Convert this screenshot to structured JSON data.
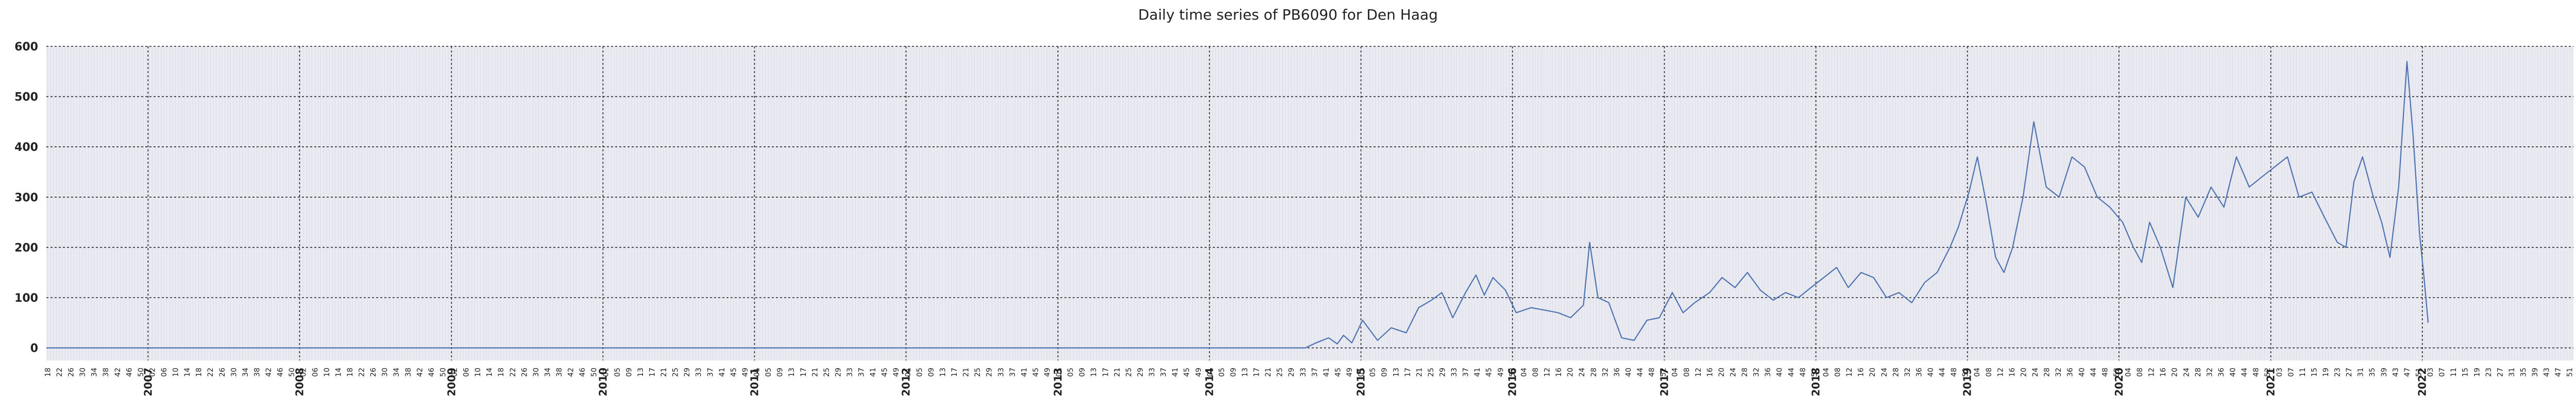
{
  "chart_data": {
    "type": "line",
    "title": "Daily time series of PB6090 for Den Haag",
    "xlabel": "",
    "ylabel": "",
    "x_range": [
      "2006-05-01",
      "2022-12-31"
    ],
    "ylim": [
      -25,
      600
    ],
    "y_ticks": [
      0,
      100,
      200,
      300,
      400,
      500,
      600
    ],
    "grid": true,
    "year_ticks": [
      "2007",
      "2008",
      "2009",
      "2010",
      "2011",
      "2012",
      "2013",
      "2014",
      "2015",
      "2016",
      "2017",
      "2018",
      "2019",
      "2020",
      "2021",
      "2022"
    ],
    "series": [
      {
        "color": "#4c72b0",
        "x": [
          "2006-05-01",
          "2014-08-20",
          "2014-09-15",
          "2014-10-15",
          "2014-11-05",
          "2014-11-20",
          "2014-12-10",
          "2015-01-05",
          "2015-02-10",
          "2015-03-15",
          "2015-04-20",
          "2015-05-20",
          "2015-06-20",
          "2015-07-15",
          "2015-08-10",
          "2015-09-10",
          "2015-10-05",
          "2015-10-25",
          "2015-11-15",
          "2015-12-15",
          "2016-01-10",
          "2016-02-15",
          "2016-03-20",
          "2016-04-20",
          "2016-05-20",
          "2016-06-20",
          "2016-07-05",
          "2016-07-25",
          "2016-08-20",
          "2016-09-20",
          "2016-10-20",
          "2016-11-20",
          "2016-12-20",
          "2017-01-20",
          "2017-02-15",
          "2017-03-15",
          "2017-04-20",
          "2017-05-20",
          "2017-06-20",
          "2017-07-20",
          "2017-08-20",
          "2017-09-20",
          "2017-10-20",
          "2017-11-20",
          "2017-12-20",
          "2018-01-20",
          "2018-02-20",
          "2018-03-20",
          "2018-04-20",
          "2018-05-20",
          "2018-06-20",
          "2018-07-20",
          "2018-08-20",
          "2018-09-20",
          "2018-10-20",
          "2018-11-20",
          "2018-12-10",
          "2019-01-05",
          "2019-01-25",
          "2019-02-15",
          "2019-03-10",
          "2019-03-30",
          "2019-04-20",
          "2019-05-15",
          "2019-06-10",
          "2019-07-10",
          "2019-08-10",
          "2019-09-10",
          "2019-10-10",
          "2019-11-10",
          "2019-12-10",
          "2020-01-10",
          "2020-02-05",
          "2020-02-25",
          "2020-03-15",
          "2020-04-10",
          "2020-05-10",
          "2020-06-10",
          "2020-07-10",
          "2020-08-10",
          "2020-09-10",
          "2020-10-10",
          "2020-11-10",
          "2020-12-10",
          "2021-01-10",
          "2021-02-10",
          "2021-03-10",
          "2021-04-10",
          "2021-05-10",
          "2021-06-10",
          "2021-07-01",
          "2021-07-20",
          "2021-08-10",
          "2021-09-05",
          "2021-09-25",
          "2021-10-15",
          "2021-11-05",
          "2021-11-25",
          "2021-12-10",
          "2021-12-25",
          "2022-01-05",
          "2022-01-15"
        ],
        "y": [
          0,
          0,
          10,
          20,
          8,
          25,
          10,
          55,
          15,
          40,
          30,
          80,
          95,
          110,
          60,
          110,
          145,
          105,
          140,
          115,
          70,
          80,
          75,
          70,
          60,
          85,
          210,
          100,
          90,
          20,
          15,
          55,
          60,
          110,
          70,
          90,
          110,
          140,
          120,
          150,
          115,
          95,
          110,
          100,
          120,
          140,
          160,
          120,
          150,
          140,
          100,
          110,
          90,
          130,
          150,
          200,
          240,
          310,
          380,
          290,
          180,
          150,
          200,
          300,
          450,
          320,
          300,
          380,
          360,
          300,
          280,
          250,
          200,
          170,
          250,
          200,
          120,
          300,
          260,
          320,
          280,
          380,
          320,
          340,
          360,
          380,
          300,
          310,
          260,
          210,
          200,
          330,
          380,
          300,
          250,
          180,
          320,
          570,
          420,
          230,
          140,
          50
        ]
      }
    ]
  }
}
